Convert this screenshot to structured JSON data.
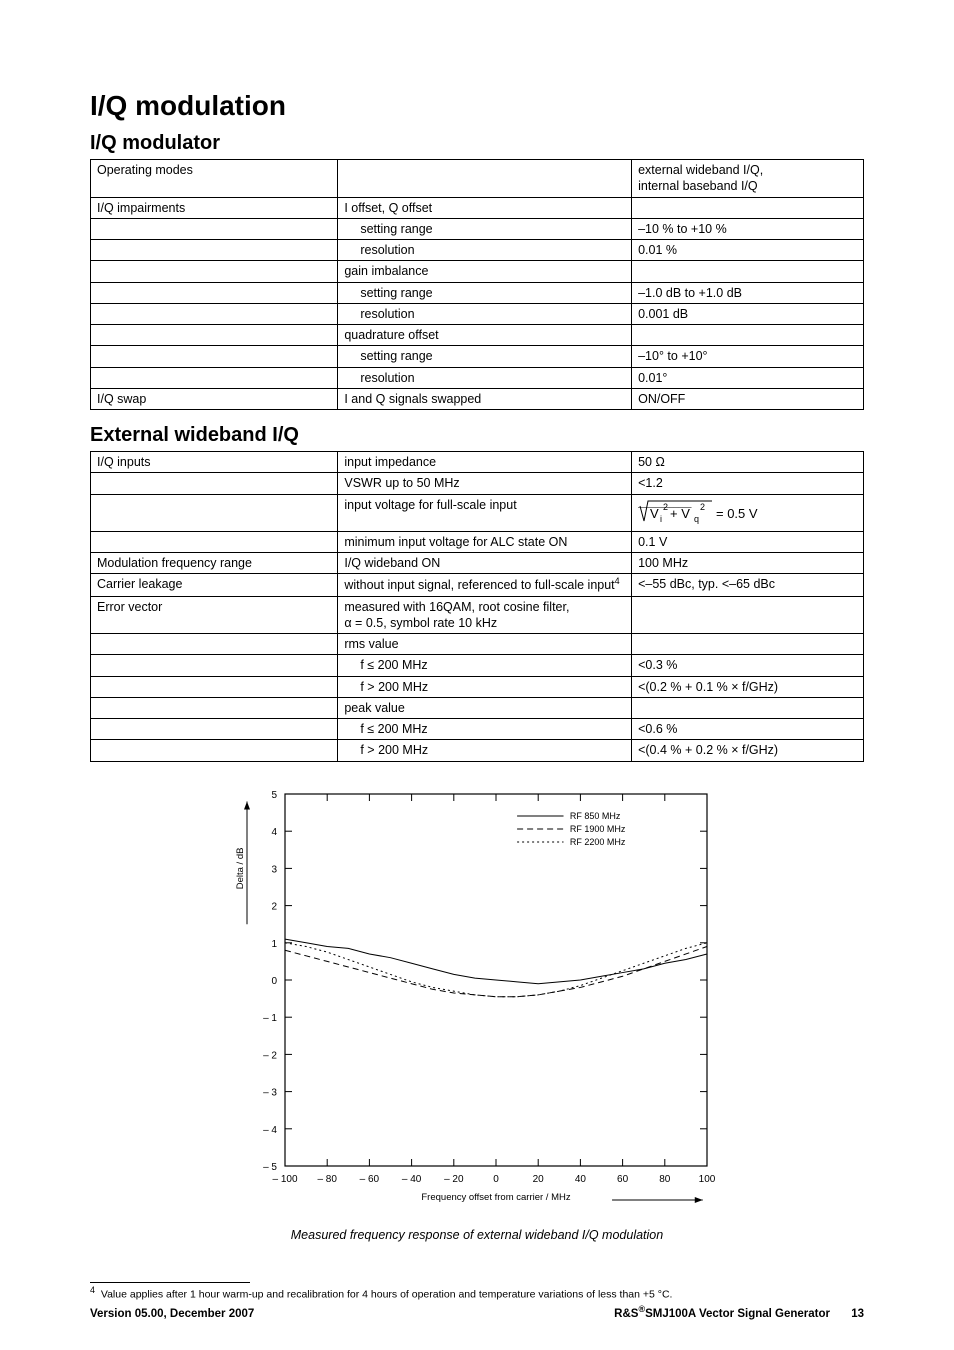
{
  "headings": {
    "h1": "I/Q modulation",
    "h2a": "I/Q modulator",
    "h2b": "External wideband I/Q"
  },
  "table1": {
    "rows": [
      [
        "Operating modes",
        "",
        "external wideband I/Q,\ninternal baseband I/Q",
        0
      ],
      [
        "I/Q impairments",
        "I offset, Q offset",
        "",
        0
      ],
      [
        "",
        "setting range",
        "–10 % to +10 %",
        1
      ],
      [
        "",
        "resolution",
        "0.01 %",
        1
      ],
      [
        "",
        "gain imbalance",
        "",
        0
      ],
      [
        "",
        "setting range",
        "–1.0 dB to +1.0 dB",
        1
      ],
      [
        "",
        "resolution",
        "0.001 dB",
        1
      ],
      [
        "",
        "quadrature offset",
        "",
        0
      ],
      [
        "",
        "setting range",
        "–10° to +10°",
        1
      ],
      [
        "",
        "resolution",
        "0.01°",
        1
      ],
      [
        "I/Q swap",
        "I and Q signals swapped",
        "ON/OFF",
        0
      ]
    ]
  },
  "table2": {
    "rows": [
      [
        "I/Q inputs",
        "input impedance",
        "50 Ω",
        0,
        null
      ],
      [
        "",
        "VSWR up to 50 MHz",
        "<1.2",
        0,
        null
      ],
      [
        "",
        "input voltage for full-scale input",
        "__FORMULA__",
        0,
        null
      ],
      [
        "",
        "minimum input voltage for ALC state ON",
        "0.1 V",
        0,
        null
      ],
      [
        "Modulation frequency range",
        "I/Q wideband ON",
        "100 MHz",
        0,
        null
      ],
      [
        "Carrier leakage",
        "without input signal, referenced to full-scale input__SUP4__",
        "<–55 dBc, typ. <–65 dBc",
        0,
        null
      ],
      [
        "Error vector",
        "measured with 16QAM, root cosine filter,\nα = 0.5, symbol rate 10 kHz",
        "",
        0,
        null
      ],
      [
        "",
        "rms value",
        "",
        0,
        null
      ],
      [
        "",
        "f ≤ 200 MHz",
        "<0.3 %",
        1,
        null
      ],
      [
        "",
        "f > 200 MHz",
        "<(0.2 % + 0.1 % × f/GHz)",
        1,
        null
      ],
      [
        "",
        "peak value",
        "",
        0,
        null
      ],
      [
        "",
        "f ≤ 200 MHz",
        "<0.6 %",
        1,
        null
      ],
      [
        "",
        "f > 200 MHz",
        "<(0.4 % + 0.2 % × f/GHz)",
        1,
        null
      ]
    ],
    "formula_label": "= 0.5 V"
  },
  "chart": {
    "caption": "Measured frequency response of external wideband I/Q modulation",
    "x_label": "Frequency offset from carrier / MHz",
    "y_label": "Delta / dB",
    "xlim": [
      -100,
      100
    ],
    "ylim": [
      -5,
      5
    ],
    "x_ticks": [
      -100,
      -80,
      -60,
      -40,
      -20,
      0,
      20,
      40,
      60,
      80,
      100
    ],
    "y_ticks": [
      -5,
      -4,
      -3,
      -2,
      -1,
      0,
      1,
      2,
      3,
      4,
      5
    ],
    "legend": [
      {
        "label": "RF 850 MHz",
        "dash": "0"
      },
      {
        "label": "RF 1900 MHz",
        "dash": "6,4"
      },
      {
        "label": "RF 2200 MHz",
        "dash": "2,3"
      }
    ],
    "series": [
      {
        "name": "RF850",
        "dash": "0",
        "color": "#000",
        "points": [
          [
            -100,
            1.1
          ],
          [
            -90,
            1.0
          ],
          [
            -80,
            0.9
          ],
          [
            -70,
            0.85
          ],
          [
            -60,
            0.7
          ],
          [
            -50,
            0.6
          ],
          [
            -40,
            0.45
          ],
          [
            -30,
            0.3
          ],
          [
            -20,
            0.15
          ],
          [
            -10,
            0.05
          ],
          [
            0,
            0
          ],
          [
            10,
            -0.05
          ],
          [
            20,
            -0.1
          ],
          [
            30,
            -0.05
          ],
          [
            40,
            0.0
          ],
          [
            50,
            0.1
          ],
          [
            60,
            0.2
          ],
          [
            70,
            0.3
          ],
          [
            80,
            0.45
          ],
          [
            90,
            0.55
          ],
          [
            100,
            0.7
          ]
        ]
      },
      {
        "name": "RF1900",
        "dash": "6,4",
        "color": "#000",
        "points": [
          [
            -100,
            0.8
          ],
          [
            -90,
            0.65
          ],
          [
            -80,
            0.5
          ],
          [
            -70,
            0.35
          ],
          [
            -60,
            0.2
          ],
          [
            -50,
            0.05
          ],
          [
            -40,
            -0.1
          ],
          [
            -30,
            -0.25
          ],
          [
            -20,
            -0.35
          ],
          [
            -10,
            -0.4
          ],
          [
            0,
            -0.45
          ],
          [
            10,
            -0.45
          ],
          [
            20,
            -0.4
          ],
          [
            30,
            -0.3
          ],
          [
            40,
            -0.2
          ],
          [
            50,
            -0.05
          ],
          [
            60,
            0.1
          ],
          [
            70,
            0.3
          ],
          [
            80,
            0.5
          ],
          [
            90,
            0.7
          ],
          [
            100,
            0.9
          ]
        ]
      },
      {
        "name": "RF2200",
        "dash": "2,3",
        "color": "#000",
        "points": [
          [
            -100,
            1.0
          ],
          [
            -90,
            0.9
          ],
          [
            -80,
            0.75
          ],
          [
            -70,
            0.55
          ],
          [
            -60,
            0.35
          ],
          [
            -50,
            0.15
          ],
          [
            -40,
            -0.05
          ],
          [
            -30,
            -0.2
          ],
          [
            -20,
            -0.3
          ],
          [
            -10,
            -0.4
          ],
          [
            0,
            -0.45
          ],
          [
            10,
            -0.45
          ],
          [
            20,
            -0.4
          ],
          [
            30,
            -0.3
          ],
          [
            40,
            -0.15
          ],
          [
            50,
            0.05
          ],
          [
            60,
            0.25
          ],
          [
            70,
            0.45
          ],
          [
            80,
            0.65
          ],
          [
            90,
            0.85
          ],
          [
            100,
            1.0
          ]
        ]
      }
    ],
    "grid_color": "#000",
    "background_color": "#ffffff",
    "line_width": 1,
    "font_size_axis": 10,
    "font_size_legend": 9
  },
  "footnote": {
    "marker": "4",
    "text": "Value applies after 1 hour warm-up and recalibration for 4 hours of operation and temperature variations of less than +5 °C."
  },
  "footer": {
    "left": "Version 05.00, December 2007",
    "right_prefix": "R&S",
    "right_sup": "®",
    "right_rest": "SMJ100A Vector Signal Generator",
    "page": "13"
  }
}
